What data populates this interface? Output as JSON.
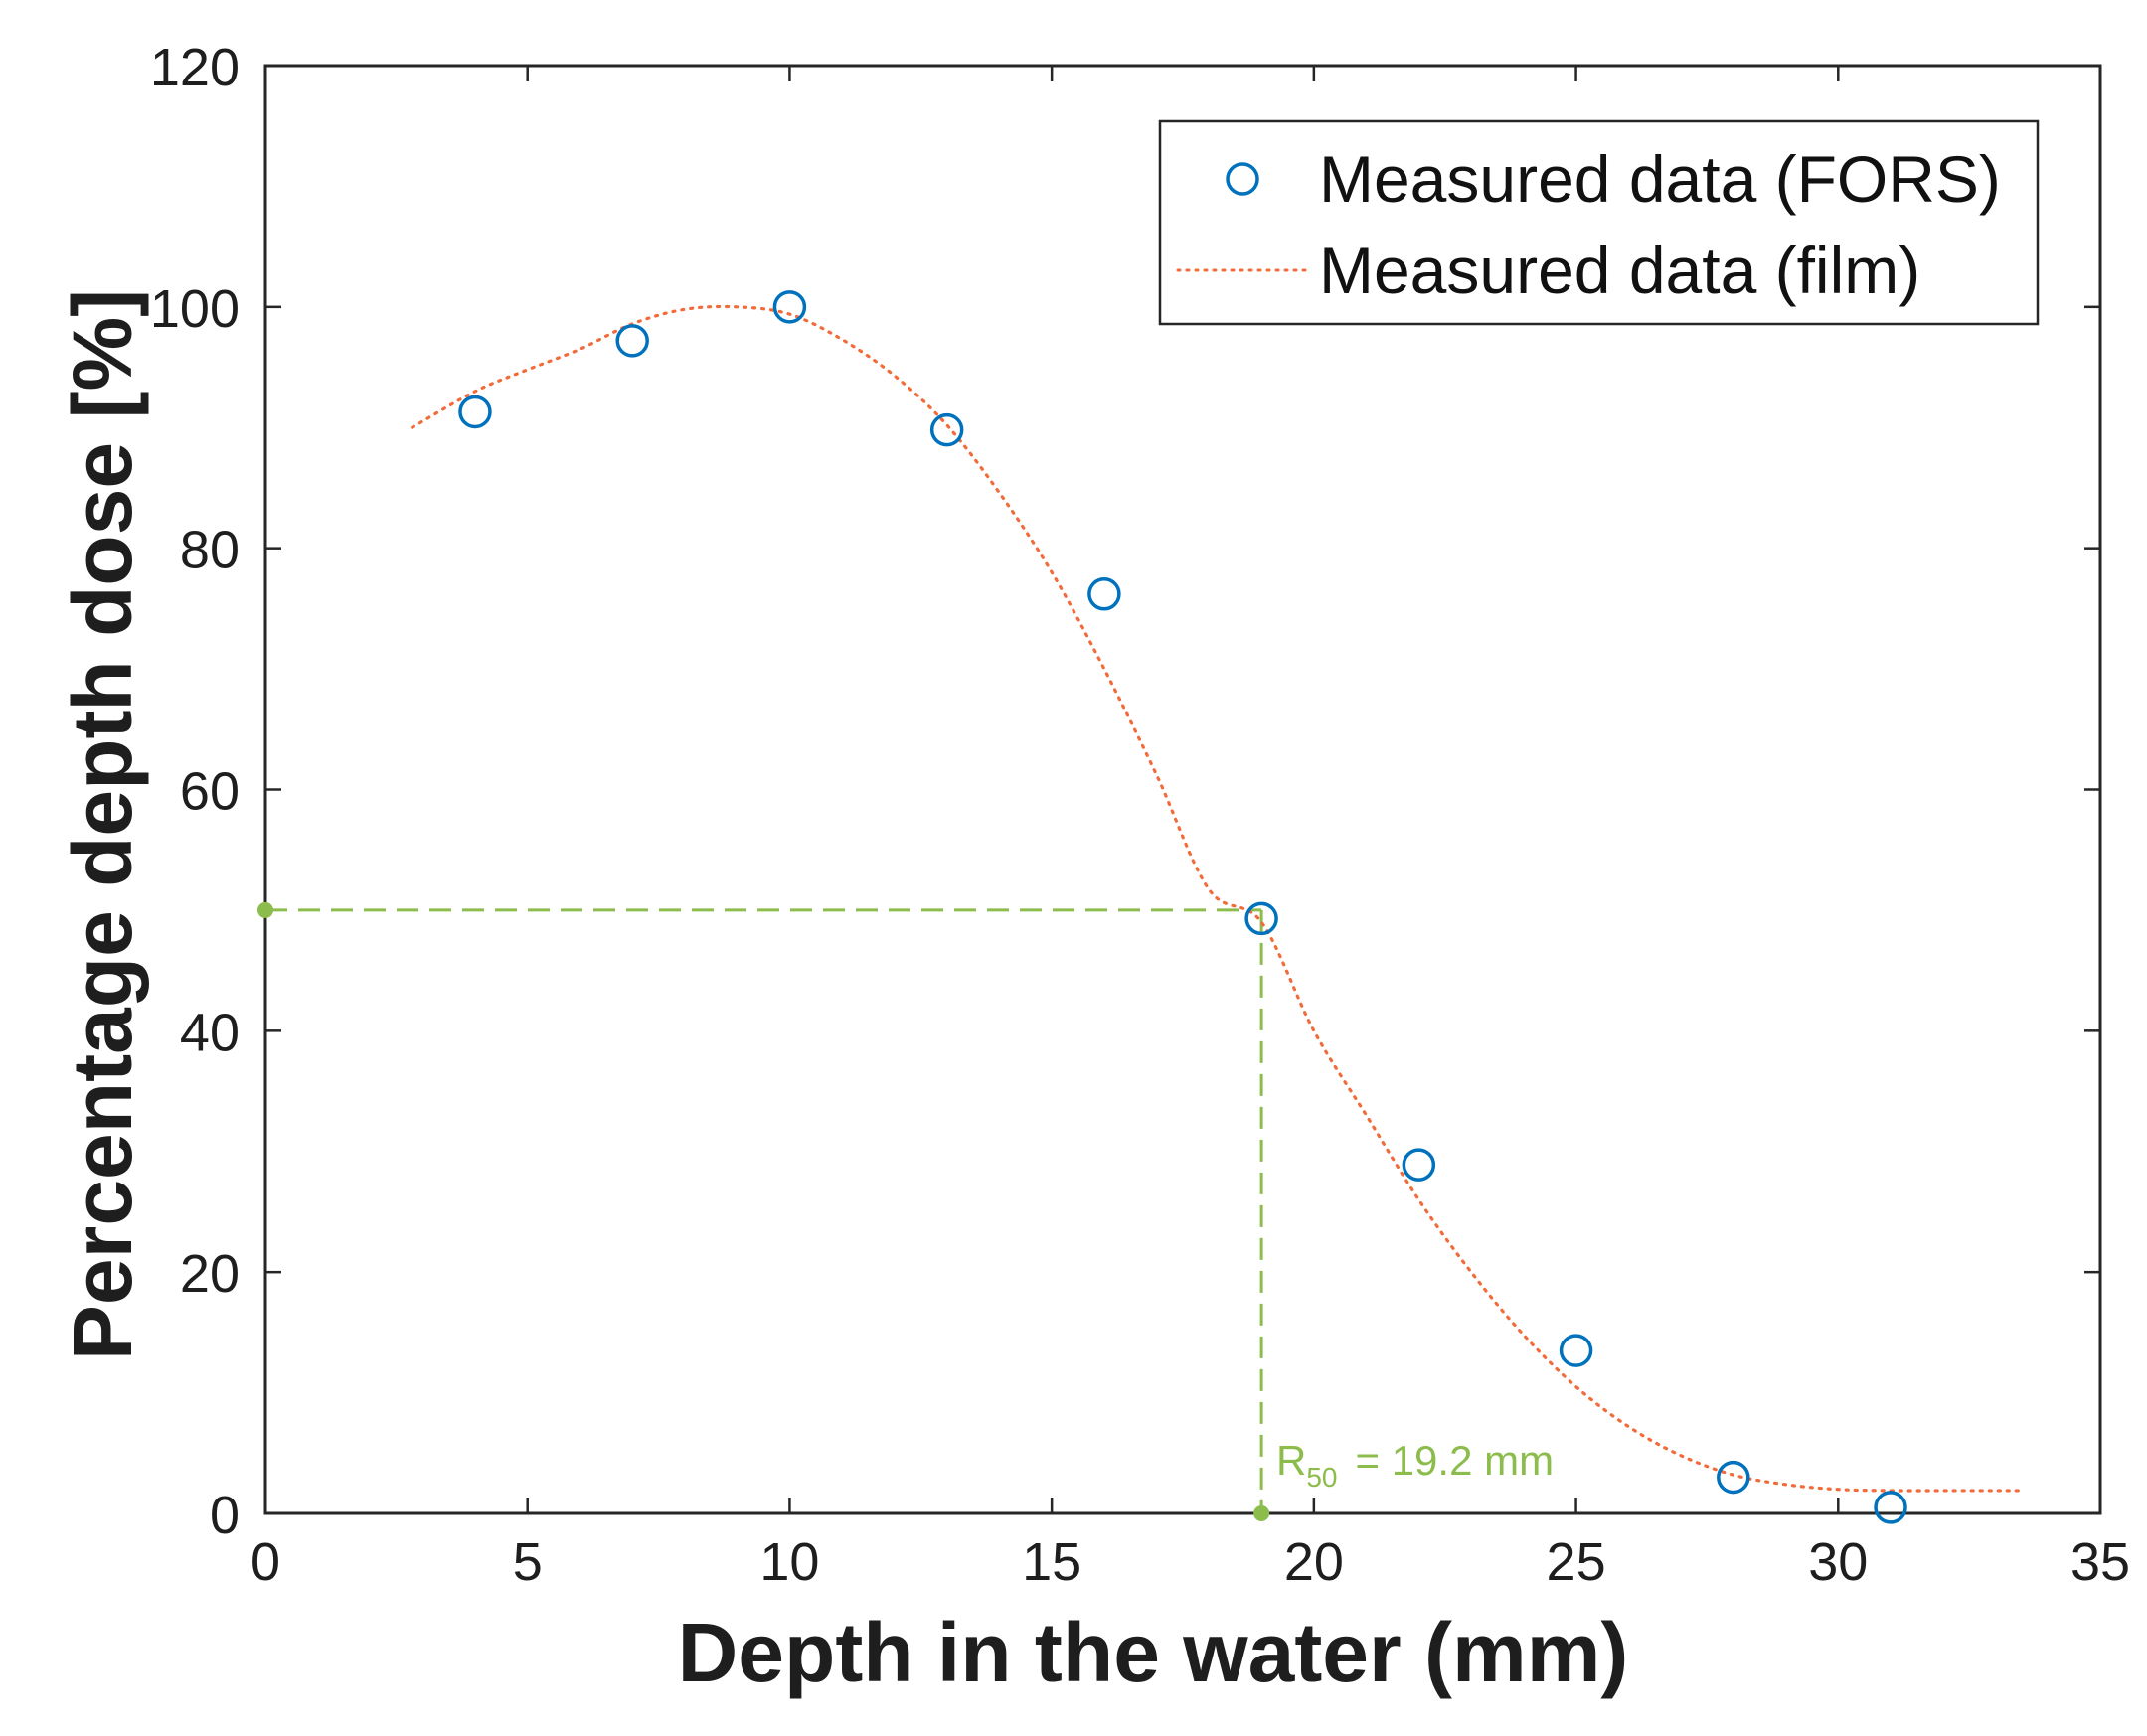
{
  "chart_data": {
    "type": "scatter",
    "xlabel": "Depth in the water (mm)",
    "ylabel": "Percentage depth dose [%]",
    "xlim": [
      0,
      35
    ],
    "ylim": [
      0,
      120
    ],
    "xticks": [
      0,
      5,
      10,
      15,
      20,
      25,
      30,
      35
    ],
    "yticks": [
      0,
      20,
      40,
      60,
      80,
      100,
      120
    ],
    "grid": false,
    "legend_position": "top-right",
    "series": [
      {
        "name": "Measured data (FORS)",
        "style": "markers",
        "marker": "open-circle",
        "color": "#0072bd",
        "x": [
          4,
          7,
          10,
          13,
          16,
          19,
          22,
          25,
          28,
          31
        ],
        "y": [
          91.3,
          97.2,
          100,
          89.8,
          76.2,
          49.3,
          28.9,
          13.5,
          3,
          0.5
        ]
      },
      {
        "name": "Measured data (film)",
        "style": "dotted-line",
        "color": "#f26b3a",
        "x": [
          2.8,
          4,
          5,
          6,
          7,
          8,
          9,
          10,
          11,
          12,
          13,
          14,
          15,
          16,
          17,
          18,
          19,
          20,
          21,
          22,
          23,
          24,
          25,
          26,
          27,
          28,
          29,
          30,
          31,
          32,
          33.5
        ],
        "y": [
          90,
          93,
          94.8,
          96.5,
          98.6,
          99.8,
          100,
          99.4,
          97.3,
          94.3,
          90.2,
          84.6,
          78,
          70,
          61.2,
          51.7,
          49,
          40,
          33,
          26,
          20,
          14.8,
          10.5,
          7.2,
          4.8,
          3.2,
          2.4,
          2,
          1.9,
          1.9,
          1.9
        ]
      }
    ],
    "reference_lines": {
      "color": "#8cbc4c",
      "r50_depth": 19,
      "level": 50
    },
    "annotation": {
      "label": "R",
      "subscript": "50",
      "value_text": "= 19.2 mm",
      "color": "#8cbc4c"
    }
  }
}
